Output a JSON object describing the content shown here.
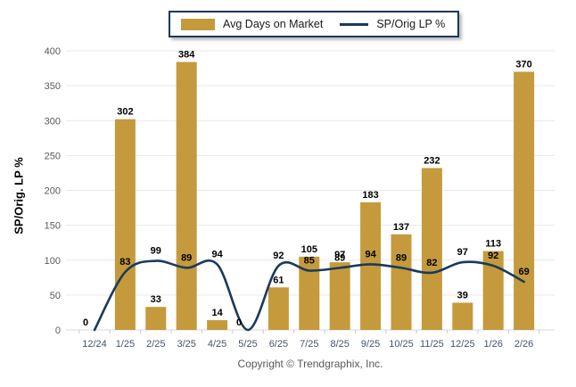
{
  "legend": {
    "bar_label": "Avg Days on Market",
    "line_label": "SP/Orig LP %"
  },
  "footer": {
    "copyright": "Copyright © Trendgraphix, Inc."
  },
  "colors": {
    "bar": "#C49A3C",
    "line": "#1A3A5C",
    "grid": "#E9E9E9",
    "axis_line": "#D9D9D9",
    "tick": "#C8C8C8",
    "x_label": "#44546A",
    "y_label": "#595959",
    "data_label": "#000000",
    "legend_border": "#17375E"
  },
  "chart_data": {
    "type": "combo",
    "categories": [
      "12/24",
      "1/25",
      "2/25",
      "3/25",
      "4/25",
      "5/25",
      "6/25",
      "7/25",
      "8/25",
      "9/25",
      "10/25",
      "11/25",
      "12/25",
      "1/26",
      "2/26"
    ],
    "series": [
      {
        "name": "Avg Days on Market",
        "type": "bar",
        "values": [
          null,
          302,
          33,
          384,
          14,
          null,
          61,
          105,
          97,
          183,
          137,
          232,
          39,
          113,
          370
        ]
      },
      {
        "name": "SP/Orig LP %",
        "type": "line",
        "values": [
          0,
          83,
          99,
          89,
          94,
          0,
          92,
          85,
          89,
          94,
          89,
          82,
          97,
          92,
          69
        ]
      }
    ],
    "title": "",
    "xlabel": "",
    "ylabel": "SP/Orig. LP %",
    "ylim": [
      0,
      400
    ],
    "y_ticks": [
      0,
      50,
      100,
      150,
      200,
      250,
      300,
      350,
      400
    ],
    "grid": true,
    "legend_position": "top",
    "data_labels": true
  }
}
